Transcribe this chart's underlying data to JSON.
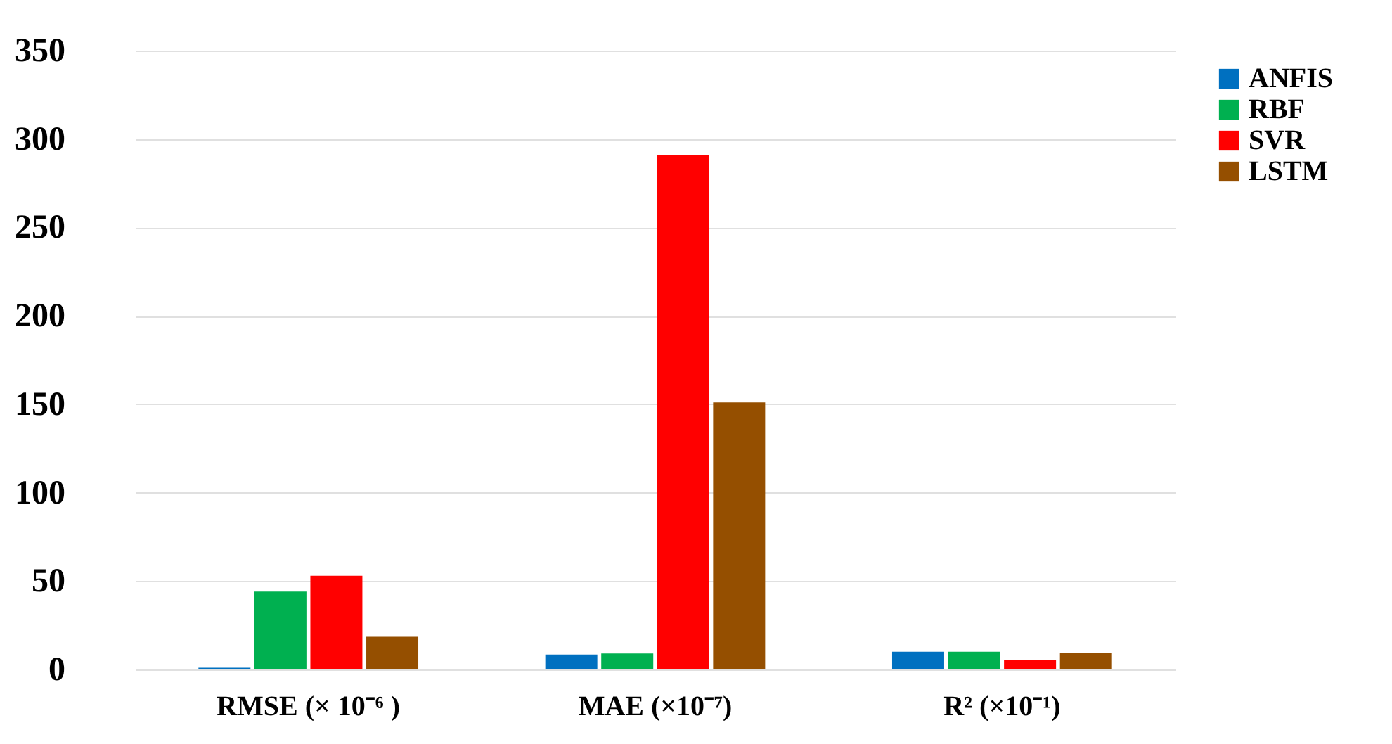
{
  "chart_data": {
    "type": "bar",
    "categories": [
      "RMSE (× 10⁻⁶ )",
      "MAE (×10⁻⁷)",
      "R² (×10⁻¹)"
    ],
    "series": [
      {
        "name": "ANFIS",
        "color": "#0070c0",
        "values": [
          1,
          8.5,
          10
        ]
      },
      {
        "name": "RBF",
        "color": "#00b050",
        "values": [
          44,
          9,
          10
        ]
      },
      {
        "name": "SVR",
        "color": "#ff0000",
        "values": [
          53,
          291,
          5.5
        ]
      },
      {
        "name": "LSTM",
        "color": "#954f00",
        "values": [
          18.5,
          151,
          9.5
        ]
      }
    ],
    "ylim": [
      0,
      350
    ],
    "yticks": [
      0,
      50,
      100,
      150,
      200,
      250,
      300,
      350
    ],
    "grid": "y",
    "legend": "right"
  }
}
